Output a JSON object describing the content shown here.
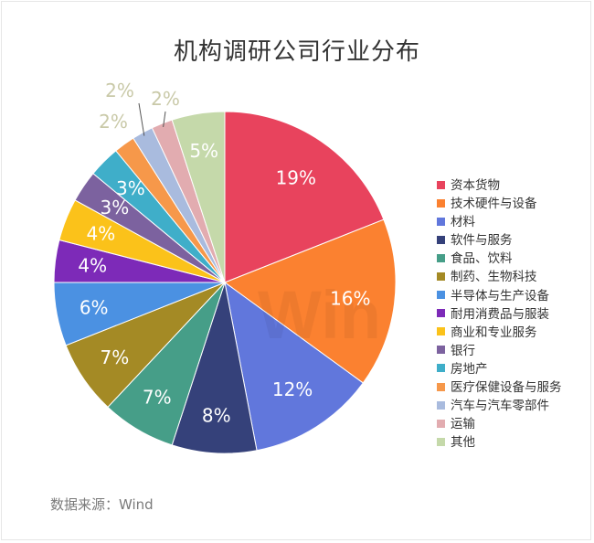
{
  "title": "机构调研公司行业分布",
  "source": "数据来源：Wind",
  "watermark": "Win",
  "chart_data": {
    "type": "pie",
    "title": "机构调研公司行业分布",
    "value_unit": "%",
    "legend_position": "right",
    "slices": [
      {
        "label": "资本货物",
        "value": 19,
        "color": "#e8435d"
      },
      {
        "label": "技术硬件与设备",
        "value": 16,
        "color": "#fb8130"
      },
      {
        "label": "材料",
        "value": 12,
        "color": "#6177dc"
      },
      {
        "label": "软件与服务",
        "value": 8,
        "color": "#35417a"
      },
      {
        "label": "食品、饮料",
        "value": 7,
        "color": "#469e88"
      },
      {
        "label": "制药、生物科技",
        "value": 7,
        "color": "#a48a25"
      },
      {
        "label": "半导体与生产设备",
        "value": 6,
        "color": "#4b91e2"
      },
      {
        "label": "耐用消费品与服装",
        "value": 4,
        "color": "#7d2ab8"
      },
      {
        "label": "商业和专业服务",
        "value": 4,
        "color": "#fbc21a"
      },
      {
        "label": "银行",
        "value": 3,
        "color": "#7c629f"
      },
      {
        "label": "房地产",
        "value": 3,
        "color": "#3faec9"
      },
      {
        "label": "医疗保健设备与服务",
        "value": 2,
        "color": "#f6984a"
      },
      {
        "label": "汽车与汽车零部件",
        "value": 2,
        "color": "#a9bbde"
      },
      {
        "label": "运输",
        "value": 2,
        "color": "#e2acb0"
      },
      {
        "label": "其他",
        "value": 5,
        "color": "#c5d9aa"
      }
    ]
  }
}
